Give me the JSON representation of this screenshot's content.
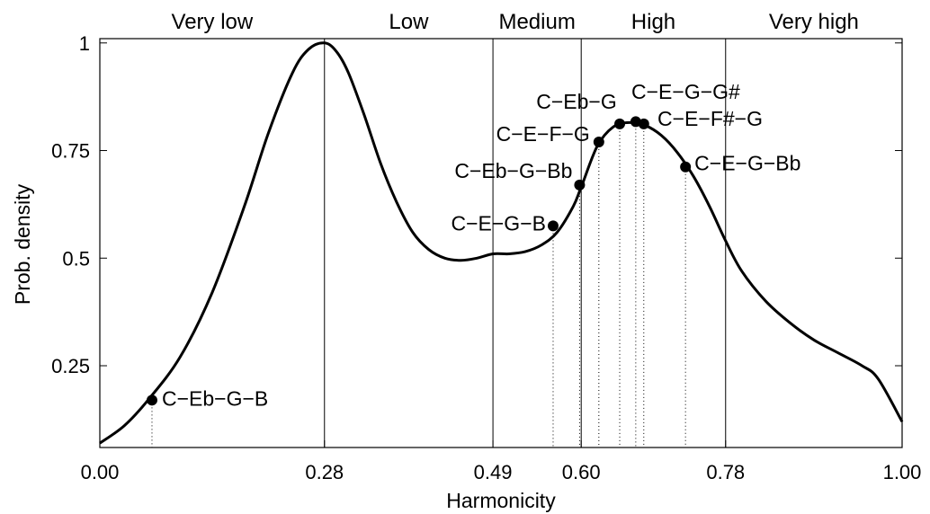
{
  "chart_data": {
    "type": "line",
    "xlabel": "Harmonicity",
    "ylabel": "Prob. density",
    "xlim": [
      0,
      1
    ],
    "ylim": [
      0.06,
      1.01
    ],
    "grid": false,
    "x_ticks": [
      {
        "value": 0.0,
        "label": "0.00"
      },
      {
        "value": 0.28,
        "label": "0.28"
      },
      {
        "value": 0.49,
        "label": "0.49"
      },
      {
        "value": 0.6,
        "label": "0.60"
      },
      {
        "value": 0.78,
        "label": "0.78"
      },
      {
        "value": 1.0,
        "label": "1.00"
      }
    ],
    "y_ticks": [
      {
        "value": 0.25,
        "label": "0.25"
      },
      {
        "value": 0.5,
        "label": "0.5"
      },
      {
        "value": 0.75,
        "label": "0.75"
      },
      {
        "value": 1.0,
        "label": "1"
      }
    ],
    "region_boundaries": [
      0.28,
      0.49,
      0.6,
      0.78
    ],
    "regions": [
      {
        "label": "Very low",
        "from": 0.0,
        "to": 0.28
      },
      {
        "label": "Low",
        "from": 0.28,
        "to": 0.49
      },
      {
        "label": "Medium",
        "from": 0.49,
        "to": 0.6
      },
      {
        "label": "High",
        "from": 0.6,
        "to": 0.78
      },
      {
        "label": "Very high",
        "from": 0.78,
        "to": 1.0
      }
    ],
    "curve": {
      "x": [
        0.0,
        0.03,
        0.06,
        0.1,
        0.14,
        0.18,
        0.21,
        0.24,
        0.26,
        0.28,
        0.295,
        0.31,
        0.33,
        0.35,
        0.37,
        0.39,
        0.41,
        0.43,
        0.45,
        0.47,
        0.49,
        0.51,
        0.53,
        0.55,
        0.57,
        0.59,
        0.6,
        0.62,
        0.64,
        0.66,
        0.68,
        0.7,
        0.72,
        0.74,
        0.76,
        0.78,
        0.8,
        0.83,
        0.86,
        0.89,
        0.92,
        0.95,
        0.97,
        1.0
      ],
      "y": [
        0.07,
        0.11,
        0.17,
        0.27,
        0.42,
        0.62,
        0.79,
        0.93,
        0.985,
        1.0,
        0.98,
        0.93,
        0.83,
        0.72,
        0.63,
        0.56,
        0.52,
        0.5,
        0.495,
        0.5,
        0.51,
        0.51,
        0.515,
        0.53,
        0.56,
        0.62,
        0.665,
        0.76,
        0.805,
        0.815,
        0.808,
        0.785,
        0.745,
        0.69,
        0.62,
        0.54,
        0.47,
        0.4,
        0.35,
        0.31,
        0.28,
        0.25,
        0.22,
        0.12
      ]
    },
    "points": [
      {
        "label": "C−Eb−G−B",
        "x": 0.065,
        "y": 0.17
      },
      {
        "label": "C−E−G−B",
        "x": 0.565,
        "y": 0.575
      },
      {
        "label": "C−Eb−G−Bb",
        "x": 0.598,
        "y": 0.67
      },
      {
        "label": "C−E−F−G",
        "x": 0.622,
        "y": 0.77
      },
      {
        "label": "C−Eb−G",
        "x": 0.648,
        "y": 0.812
      },
      {
        "label": "C−E−G−G#",
        "x": 0.668,
        "y": 0.817
      },
      {
        "label": "C−E−F#−G",
        "x": 0.678,
        "y": 0.812
      },
      {
        "label": "C−E−G−Bb",
        "x": 0.73,
        "y": 0.712
      }
    ]
  }
}
